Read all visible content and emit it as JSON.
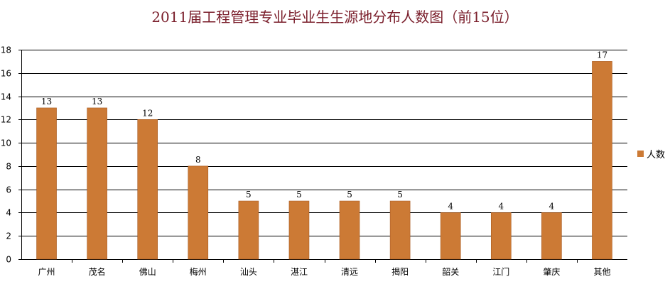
{
  "chart_data": {
    "type": "bar",
    "title": "2011届工程管理专业毕业生生源地分布人数图（前15位）",
    "categories": [
      "广州",
      "茂名",
      "佛山",
      "梅州",
      "汕头",
      "湛江",
      "清远",
      "揭阳",
      "韶关",
      "江门",
      "肇庆",
      "其他"
    ],
    "series": [
      {
        "name": "人数",
        "values": [
          13,
          13,
          12,
          8,
          5,
          5,
          5,
          5,
          4,
          4,
          4,
          17
        ],
        "color": "#cc7a35"
      }
    ],
    "ylim": [
      0,
      18
    ],
    "yticks": [
      0,
      2,
      4,
      6,
      8,
      10,
      12,
      14,
      16,
      18
    ],
    "grid": true,
    "legend_position": "right",
    "data_labels": true
  }
}
